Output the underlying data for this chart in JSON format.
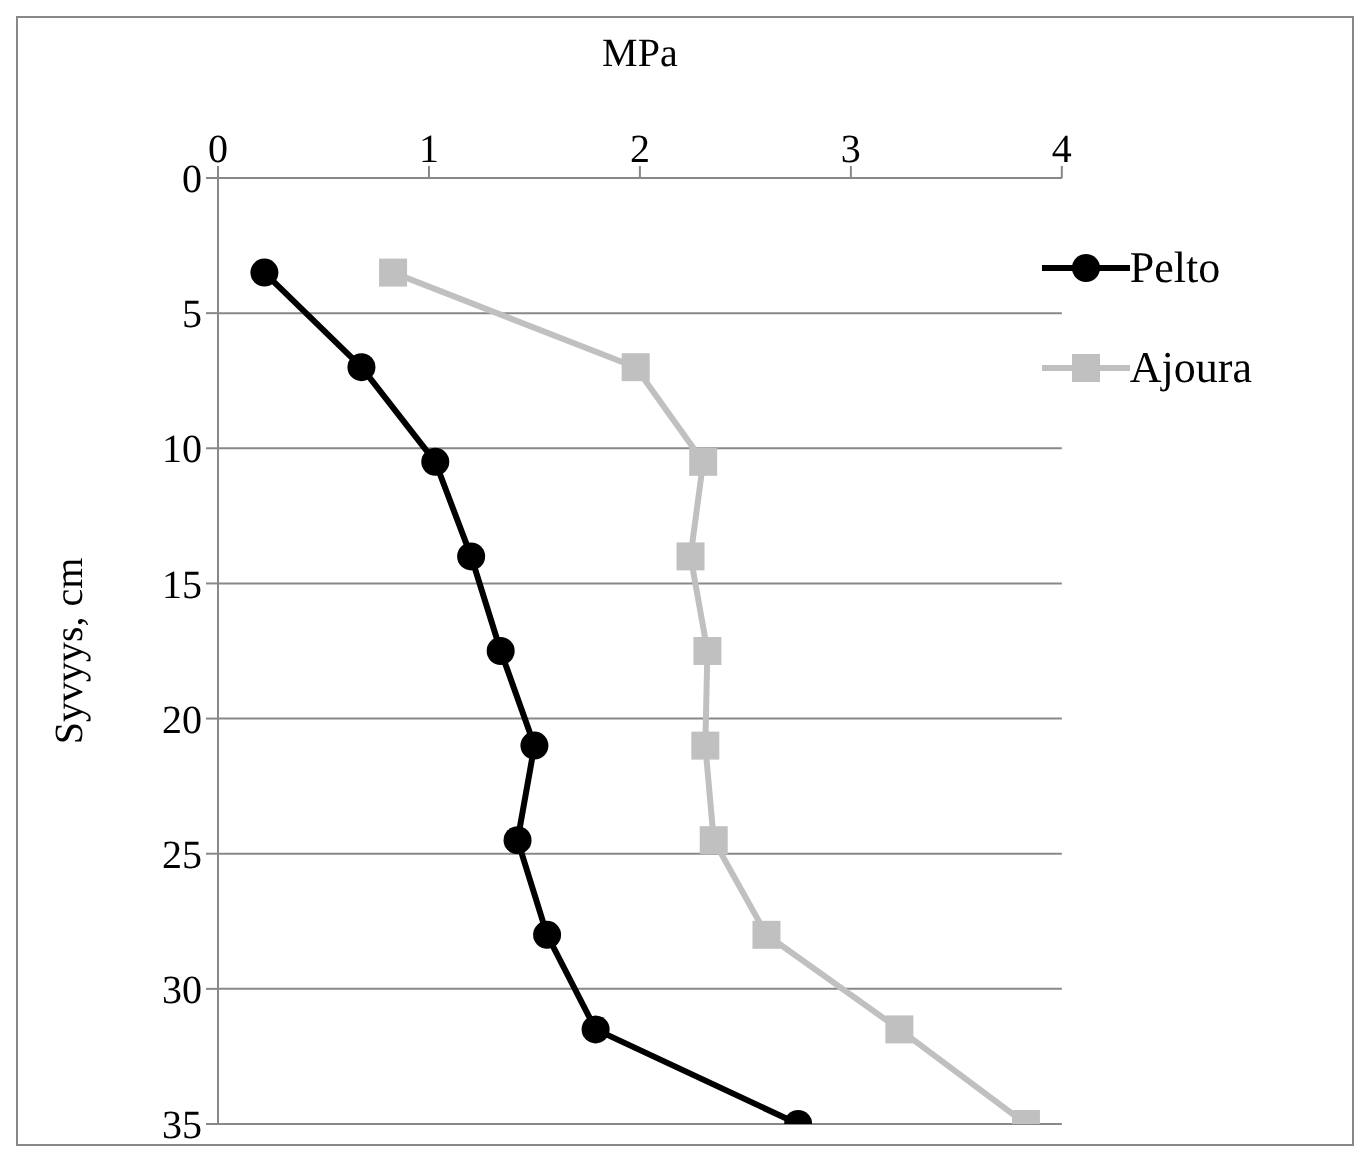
{
  "chart_data": {
    "type": "line",
    "orientation": "horizontal",
    "xlabel": "MPa",
    "ylabel": "Syvyys, cm",
    "x": [
      3.5,
      7,
      10.5,
      14,
      17.5,
      21,
      24.5,
      28,
      31.5,
      35
    ],
    "series": [
      {
        "name": "Pelto",
        "color": "#000000",
        "marker": "circle",
        "values": [
          0.22,
          0.68,
          1.03,
          1.2,
          1.34,
          1.5,
          1.42,
          1.56,
          1.79,
          2.75
        ]
      },
      {
        "name": "Ajoura",
        "color": "#c0c0c0",
        "marker": "square",
        "values": [
          0.83,
          1.98,
          2.3,
          2.24,
          2.32,
          2.31,
          2.35,
          2.6,
          3.23,
          3.83
        ]
      }
    ],
    "xlim": [
      0,
      4
    ],
    "xticks": [
      0,
      1,
      2,
      3,
      4
    ],
    "ylim": [
      35,
      0
    ],
    "yticks": [
      0,
      5,
      10,
      15,
      20,
      25,
      30,
      35
    ],
    "grid": "y",
    "legend": "top right"
  }
}
